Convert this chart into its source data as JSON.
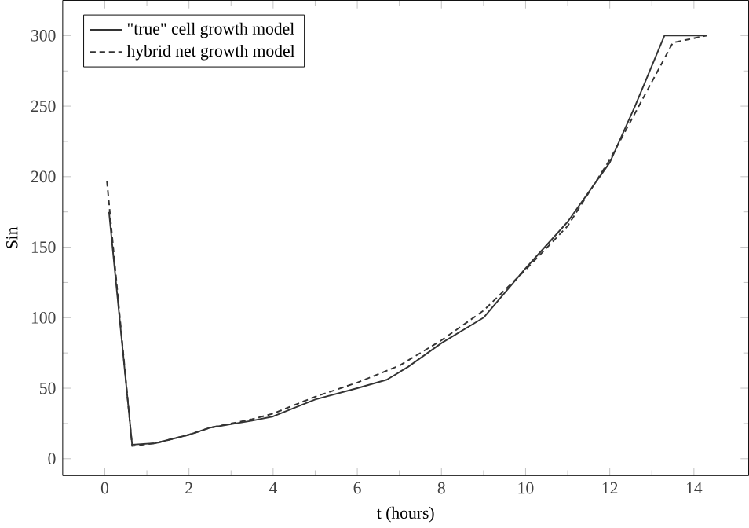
{
  "chart_data": {
    "type": "line",
    "xlabel": "t (hours)",
    "ylabel": "Sin",
    "xlim": [
      -1,
      15.3
    ],
    "ylim": [
      -12,
      325
    ],
    "xticks": [
      0,
      2,
      4,
      6,
      8,
      10,
      12,
      14
    ],
    "yticks": [
      0,
      50,
      100,
      150,
      200,
      250,
      300
    ],
    "legend": "top left",
    "series": [
      {
        "name": "\"true\" cell growth model",
        "color": "#333333",
        "line_style": "solid",
        "x": [
          0.1,
          0.65,
          1.2,
          2,
          2.5,
          3.5,
          4,
          5,
          6,
          6.7,
          7.2,
          8,
          9,
          10,
          11,
          12,
          12.6,
          13.3,
          14.3
        ],
        "values": [
          175,
          10,
          11,
          17,
          22,
          27,
          30,
          42,
          50,
          56,
          65,
          82,
          100,
          135,
          168,
          210,
          250,
          300,
          300
        ]
      },
      {
        "name": "hybrid net growth model",
        "color": "#333333",
        "line_style": "dashed",
        "x": [
          0.05,
          0.2,
          0.65,
          1.2,
          2,
          2.5,
          3.5,
          4,
          5,
          6,
          7,
          8,
          9,
          10,
          11,
          12,
          12.6,
          13.5,
          14.3
        ],
        "values": [
          197,
          150,
          9,
          11,
          17,
          22,
          28,
          32,
          44,
          54,
          66,
          84,
          105,
          134,
          165,
          212,
          245,
          295,
          300
        ]
      }
    ]
  }
}
